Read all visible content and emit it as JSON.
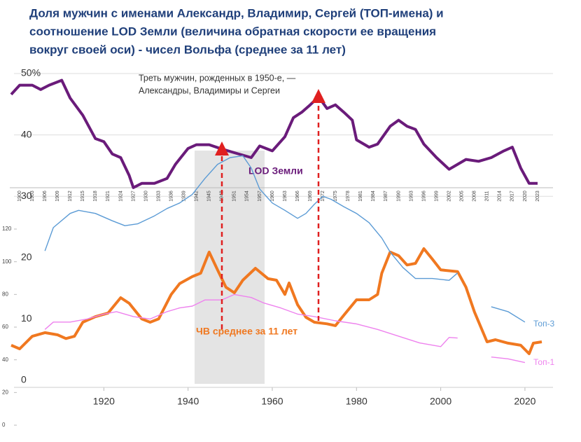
{
  "chart_data": {
    "type": "line",
    "title": [
      "Доля мужчин с именами Александр, Владимир, Сергей (ТОП-имена)  и",
      "соотношение LOD Земли (величина обратная скорости ее вращения",
      "вокруг своей оси)  -  чисел Вольфа (среднее за 11 лет)"
    ],
    "annotation": [
      "Треть мужчин, рожденных в 1950-е, —",
      "Александры, Владимиры и Сергеи"
    ],
    "xlim": [
      1896,
      2026
    ],
    "xticks": [
      1920,
      1940,
      1960,
      1980,
      2000,
      2020
    ],
    "top_xticks": [
      1900,
      1903,
      1906,
      1909,
      1912,
      1915,
      1918,
      1921,
      1924,
      1927,
      1930,
      1933,
      1936,
      1939,
      1942,
      1945,
      1948,
      1951,
      1954,
      1957,
      1960,
      1963,
      1966,
      1969,
      1972,
      1975,
      1978,
      1981,
      1984,
      1987,
      1990,
      1993,
      1996,
      1999,
      2002,
      2005,
      2008,
      2011,
      2014,
      2017,
      2020,
      2023
    ],
    "ylim": [
      0,
      50
    ],
    "yticks": [
      0,
      10,
      20,
      30,
      40,
      {
        "value": 50,
        "label": "50%"
      }
    ],
    "y2lim": [
      0,
      120
    ],
    "y2ticks": [
      0,
      20,
      40,
      60,
      80,
      100,
      120
    ],
    "grid": true,
    "series": [
      {
        "name": "LOD  Земли",
        "color": "#6a1b7a",
        "x": [
          1898,
          1900,
          1903,
          1905,
          1907,
          1910,
          1912,
          1915,
          1918,
          1920,
          1922,
          1924,
          1926,
          1927,
          1929,
          1932,
          1935,
          1937,
          1940,
          1942,
          1945,
          1948,
          1951,
          1955,
          1957,
          1960,
          1963,
          1965,
          1967,
          1969,
          1971,
          1973,
          1975,
          1977,
          1979,
          1980,
          1983,
          1985,
          1988,
          1990,
          1992,
          1994,
          1996,
          1999,
          2002,
          2004,
          2006,
          2009,
          2012,
          2015,
          2017,
          2019,
          2021,
          2023
        ],
        "values": [
          46.6,
          48.1,
          48.1,
          47.4,
          48.1,
          48.9,
          46.0,
          43.2,
          39.4,
          38.9,
          36.9,
          36.3,
          33.4,
          31.4,
          32.1,
          32.1,
          32.9,
          35.2,
          37.8,
          38.4,
          38.4,
          37.7,
          37.1,
          36.3,
          38.2,
          37.4,
          39.7,
          42.8,
          43.7,
          44.9,
          46.2,
          44.3,
          44.9,
          43.7,
          42.4,
          39.2,
          38.0,
          38.5,
          41.4,
          42.4,
          41.4,
          40.9,
          38.5,
          36.3,
          34.4,
          35.2,
          36.0,
          35.7,
          36.3,
          37.4,
          38.0,
          34.6,
          32.1,
          32.1
        ]
      },
      {
        "name": "ЧВ среднее за 11 лет",
        "color": "#f07820",
        "axis": "y2",
        "x": [
          1898,
          1900,
          1903,
          1906,
          1909,
          1911,
          1913,
          1915,
          1918,
          1921,
          1924,
          1926,
          1929,
          1931,
          1933,
          1936,
          1938,
          1941,
          1943,
          1945,
          1947,
          1949,
          1951,
          1953,
          1956,
          1959,
          1961,
          1963,
          1964,
          1966,
          1968,
          1970,
          1973,
          1975,
          1977,
          1980,
          1983,
          1985,
          1986,
          1988,
          1990,
          1992,
          1994,
          1996,
          1998,
          2000,
          2004,
          2006,
          2008,
          2011,
          2013,
          2016,
          2019,
          2021,
          2022,
          2024
        ],
        "values": [
          48.9,
          46.7,
          54.4,
          56.6,
          55.3,
          53,
          54.4,
          63,
          66.4,
          68.6,
          78,
          74.6,
          65,
          63,
          65,
          80,
          86.6,
          90.9,
          93,
          105.9,
          95,
          84.4,
          81,
          88.7,
          96,
          89.6,
          88.7,
          80,
          87,
          73.7,
          66,
          63,
          62,
          60.9,
          67.3,
          76.7,
          76.7,
          80,
          93,
          105.9,
          103.7,
          98,
          99,
          108,
          101.6,
          95,
          94,
          84.4,
          69.4,
          51,
          52.3,
          50.2,
          48.9,
          43.7,
          50.2,
          51
        ]
      },
      {
        "name": "Топ-3",
        "color": "#5b9bd5",
        "x": [
          1906,
          1908,
          1912,
          1914,
          1918,
          1922,
          1925,
          1928,
          1932,
          1935,
          1938,
          1941,
          1944,
          1947,
          1950,
          1953,
          1955,
          1957,
          1960,
          1963,
          1966,
          1968,
          1970,
          1972,
          1974,
          1977,
          1980,
          1983,
          1986,
          1988,
          1991,
          1994,
          1998,
          2002,
          2004,
          2008,
          2012,
          2016,
          2020
        ],
        "values": [
          21.1,
          24.9,
          27.2,
          27.7,
          27.2,
          26.0,
          25.2,
          25.5,
          26.8,
          28.0,
          28.9,
          30.3,
          32.9,
          35.2,
          36.3,
          36.6,
          34.6,
          31.2,
          28.9,
          27.7,
          26.4,
          27.2,
          28.7,
          30.0,
          29.5,
          28.3,
          27.2,
          25.7,
          23.2,
          20.9,
          18.4,
          16.6,
          16.6,
          16.3,
          17.5,
          null,
          12.0,
          11.2,
          9.5
        ]
      },
      {
        "name": "Топ-1",
        "color": "#ee82ee",
        "x": [
          1906,
          1908,
          1912,
          1916,
          1920,
          1923,
          1927,
          1931,
          1935,
          1938,
          1941,
          1944,
          1948,
          1951,
          1955,
          1958,
          1962,
          1966,
          1970,
          1975,
          1980,
          1985,
          1990,
          1995,
          2000,
          2002,
          2004,
          2008,
          2012,
          2016,
          2020
        ],
        "values": [
          8.3,
          9.5,
          9.5,
          10.0,
          10.8,
          11.2,
          10.4,
          10.0,
          11.2,
          11.8,
          12.1,
          13.1,
          13.1,
          14.0,
          13.5,
          12.6,
          11.8,
          10.8,
          10.4,
          9.7,
          9.2,
          8.3,
          7.2,
          6.1,
          5.5,
          7.0,
          6.9,
          null,
          3.8,
          3.5,
          2.9
        ]
      }
    ]
  }
}
